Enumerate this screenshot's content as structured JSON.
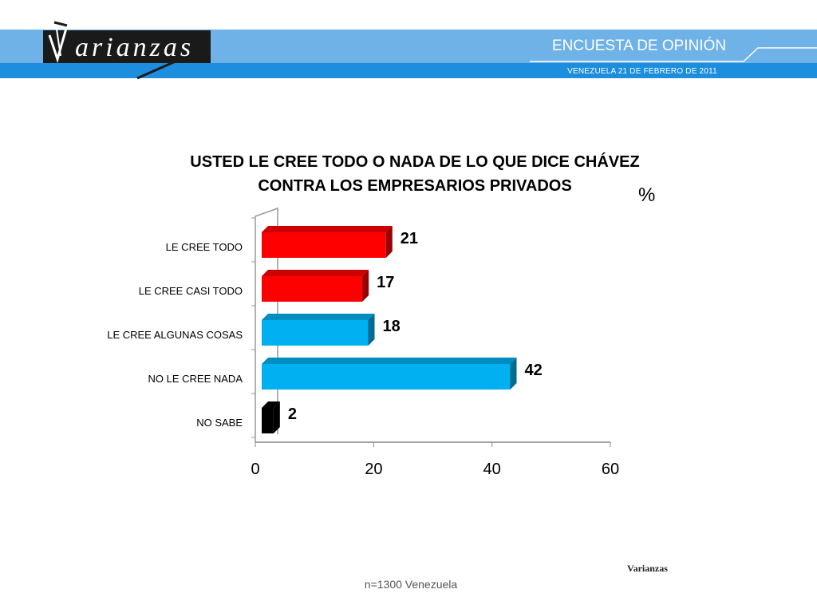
{
  "header": {
    "brand_logo_text": "Varianzas",
    "survey_title": "ENCUESTA DE OPINIÓN",
    "survey_date": "VENEZUELA  21 DE  FEBRERO DE 2011",
    "colors": {
      "band_light": "#6fb2e8",
      "band_dark": "#1d8ede"
    }
  },
  "chart_data": {
    "type": "bar",
    "orientation": "horizontal",
    "title_line1": "USTED LE CREE TODO O NADA DE LO QUE DICE CHÁVEZ",
    "title_line2": "CONTRA LOS EMPRESARIOS PRIVADOS",
    "unit": "%",
    "categories": [
      "LE CREE TODO",
      "LE CREE CASI TODO",
      "LE CREE ALGUNAS COSAS",
      "NO LE CREE NADA",
      "NO SABE"
    ],
    "values": [
      21,
      17,
      18,
      42,
      2
    ],
    "data_labels": [
      "21",
      "17",
      "18",
      "42",
      "2"
    ],
    "bar_colors": [
      "#ff0000",
      "#ff0000",
      "#00b0f0",
      "#00b0f0",
      "#000000"
    ],
    "xlim": [
      0,
      60
    ],
    "x_ticks": [
      "0",
      "20",
      "40",
      "60"
    ],
    "grid": false,
    "style": "3d"
  },
  "footer": {
    "sample_note": "n=1300  Venezuela",
    "brand": "Varianzas"
  }
}
